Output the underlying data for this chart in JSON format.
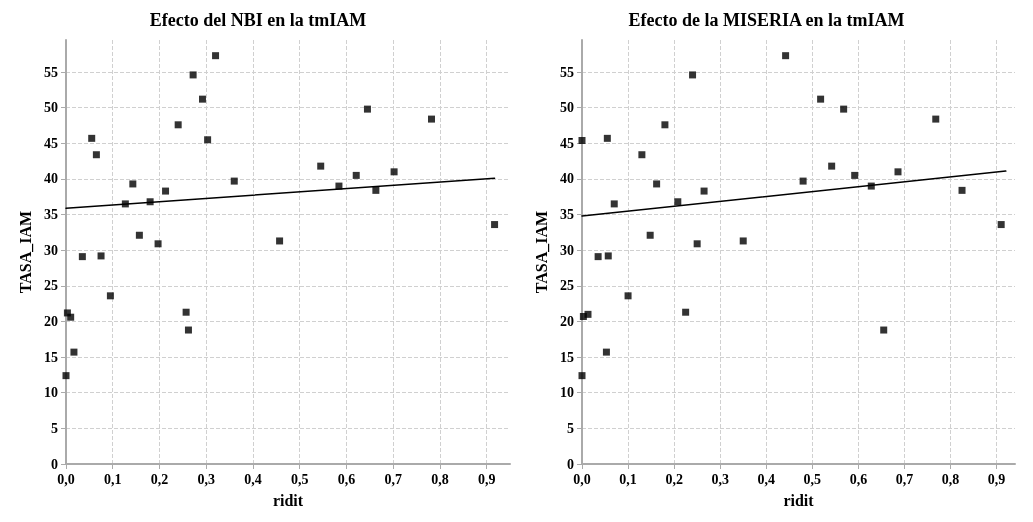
{
  "chart_data": [
    {
      "type": "scatter",
      "title": "Efecto del NBI en la tmIAM",
      "xlabel": "ridit",
      "ylabel": "TASA_IAM",
      "marker": "square",
      "grid": true,
      "xlim": [
        0,
        0.95
      ],
      "ylim": [
        0,
        59.5
      ],
      "xticks": [
        {
          "value": 0,
          "label": "0,0"
        },
        {
          "value": 0.1,
          "label": "0,1"
        },
        {
          "value": 0.2,
          "label": "0,2"
        },
        {
          "value": 0.3,
          "label": "0,3"
        },
        {
          "value": 0.4,
          "label": "0,4"
        },
        {
          "value": 0.5,
          "label": "0,5"
        },
        {
          "value": 0.6,
          "label": "0,6"
        },
        {
          "value": 0.7,
          "label": "0,7"
        },
        {
          "value": 0.8,
          "label": "0,8"
        },
        {
          "value": 0.9,
          "label": "0,9"
        }
      ],
      "yticks": [
        0,
        5,
        10,
        15,
        20,
        25,
        30,
        35,
        40,
        45,
        50,
        55
      ],
      "series": [
        {
          "color": "#000000",
          "x": [
            0.0,
            0.003,
            0.01,
            0.017,
            0.035,
            0.055,
            0.065,
            0.075,
            0.095,
            0.127,
            0.143,
            0.157,
            0.18,
            0.197,
            0.213,
            0.24,
            0.257,
            0.262,
            0.272,
            0.292,
            0.303,
            0.32,
            0.36,
            0.457,
            0.545,
            0.584,
            0.621,
            0.645,
            0.663,
            0.702,
            0.782,
            0.917
          ],
          "values": [
            12.4,
            21.2,
            20.6,
            15.7,
            29.1,
            45.7,
            43.4,
            29.2,
            23.6,
            36.5,
            39.3,
            32.1,
            36.8,
            30.9,
            38.3,
            47.6,
            21.3,
            18.8,
            54.6,
            51.2,
            45.5,
            57.3,
            39.7,
            31.3,
            41.8,
            39.0,
            40.5,
            49.8,
            38.4,
            41.0,
            48.4,
            33.6
          ]
        },
        {
          "type": "line",
          "color": "#000000",
          "line_style": "solid",
          "marker": "none",
          "x": [
            0,
            0.917
          ],
          "values": [
            35.9,
            40.1
          ]
        }
      ]
    },
    {
      "type": "scatter",
      "title": "Efecto de la MISERIA en la tmIAM",
      "xlabel": "ridit",
      "ylabel": "TASA_IAM",
      "marker": "square",
      "grid": true,
      "xlim": [
        0,
        0.94
      ],
      "ylim": [
        0,
        59.5
      ],
      "xticks": [
        {
          "value": 0,
          "label": "0,0"
        },
        {
          "value": 0.1,
          "label": "0,1"
        },
        {
          "value": 0.2,
          "label": "0,2"
        },
        {
          "value": 0.3,
          "label": "0,3"
        },
        {
          "value": 0.4,
          "label": "0,4"
        },
        {
          "value": 0.5,
          "label": "0,5"
        },
        {
          "value": 0.6,
          "label": "0,6"
        },
        {
          "value": 0.7,
          "label": "0,7"
        },
        {
          "value": 0.8,
          "label": "0,8"
        },
        {
          "value": 0.9,
          "label": "0,9"
        }
      ],
      "yticks": [
        0,
        5,
        10,
        15,
        20,
        25,
        30,
        35,
        40,
        45,
        50,
        55
      ],
      "series": [
        {
          "color": "#000000",
          "x": [
            0.0,
            0.0,
            0.003,
            0.013,
            0.035,
            0.053,
            0.055,
            0.057,
            0.07,
            0.1,
            0.13,
            0.148,
            0.162,
            0.18,
            0.208,
            0.225,
            0.24,
            0.25,
            0.265,
            0.35,
            0.442,
            0.48,
            0.518,
            0.542,
            0.568,
            0.592,
            0.628,
            0.655,
            0.686,
            0.768,
            0.825,
            0.91
          ],
          "values": [
            12.4,
            45.4,
            20.7,
            21.0,
            29.1,
            15.7,
            45.7,
            29.2,
            36.5,
            23.6,
            43.4,
            32.1,
            39.3,
            47.6,
            36.8,
            21.3,
            54.6,
            30.9,
            38.3,
            31.3,
            57.3,
            39.7,
            51.2,
            41.8,
            49.8,
            40.5,
            39.0,
            18.8,
            41.0,
            48.4,
            38.4,
            33.6
          ]
        },
        {
          "type": "line",
          "color": "#000000",
          "line_style": "solid",
          "marker": "none",
          "x": [
            0,
            0.92
          ],
          "values": [
            34.8,
            41.1
          ]
        }
      ]
    }
  ]
}
